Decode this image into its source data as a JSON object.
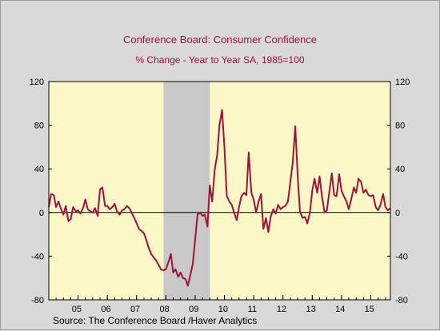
{
  "chart_data": {
    "type": "line",
    "title": "Conference Board: Consumer Confidence",
    "subtitle": "% Change - Year to Year    SA, 1985=100",
    "source": "Source:  The Conference Board /Haver Analytics",
    "x_tick_labels": [
      "05",
      "06",
      "07",
      "08",
      "09",
      "10",
      "11",
      "12",
      "13",
      "14",
      "15"
    ],
    "y_ticks": [
      120,
      80,
      40,
      0,
      -40,
      -80
    ],
    "ylim": [
      -80,
      120
    ],
    "xlim": [
      2004.0,
      2015.67
    ],
    "recession": {
      "start": 2007.92,
      "end": 2009.5
    },
    "colors": {
      "line": "#a0103a",
      "plot_bg": "#fbf7c7",
      "recession": "#c8c8c8",
      "title": "#a0103a"
    },
    "series": [
      {
        "x": [
          2004.0,
          2004.08,
          2004.17,
          2004.25,
          2004.33,
          2004.42,
          2004.5,
          2004.58,
          2004.67,
          2004.75,
          2004.83,
          2004.92,
          2005.0,
          2005.08,
          2005.17,
          2005.25,
          2005.33,
          2005.42,
          2005.5,
          2005.58,
          2005.67,
          2005.75,
          2005.83,
          2005.92,
          2006.0,
          2006.08,
          2006.17,
          2006.25,
          2006.33,
          2006.42,
          2006.5,
          2006.58,
          2006.67,
          2006.75,
          2006.83,
          2006.92,
          2007.0,
          2007.08,
          2007.17,
          2007.25,
          2007.33,
          2007.42,
          2007.5,
          2007.58,
          2007.67,
          2007.75,
          2007.83,
          2007.92,
          2008.0,
          2008.08,
          2008.17,
          2008.25,
          2008.33,
          2008.42,
          2008.5,
          2008.58,
          2008.67,
          2008.75,
          2008.83,
          2008.92,
          2009.0,
          2009.08,
          2009.17,
          2009.25,
          2009.33,
          2009.42,
          2009.5,
          2009.58,
          2009.67,
          2009.75,
          2009.83,
          2009.92,
          2010.0,
          2010.08,
          2010.17,
          2010.25,
          2010.33,
          2010.42,
          2010.5,
          2010.58,
          2010.67,
          2010.75,
          2010.83,
          2010.92,
          2011.0,
          2011.08,
          2011.17,
          2011.25,
          2011.33,
          2011.42,
          2011.5,
          2011.58,
          2011.67,
          2011.75,
          2011.83,
          2011.92,
          2012.0,
          2012.08,
          2012.17,
          2012.25,
          2012.33,
          2012.42,
          2012.5,
          2012.58,
          2012.67,
          2012.75,
          2012.83,
          2012.92,
          2013.0,
          2013.08,
          2013.17,
          2013.25,
          2013.33,
          2013.42,
          2013.5,
          2013.58,
          2013.67,
          2013.75,
          2013.83,
          2013.92,
          2014.0,
          2014.08,
          2014.17,
          2014.25,
          2014.33,
          2014.42,
          2014.5,
          2014.58,
          2014.67,
          2014.75,
          2014.83,
          2014.92,
          2015.0,
          2015.08,
          2015.17,
          2015.25,
          2015.33,
          2015.42,
          2015.5,
          2015.58,
          2015.67
        ],
        "y": [
          5,
          17,
          16,
          5,
          10,
          3,
          -2,
          6,
          -8,
          -6,
          5,
          1,
          2,
          -1,
          4,
          12,
          3,
          1,
          0,
          4,
          -3,
          21,
          23,
          6,
          6,
          3,
          5,
          8,
          1,
          -2,
          2,
          3,
          6,
          4,
          0,
          -5,
          -10,
          -15,
          -17,
          -19,
          -25,
          -33,
          -38,
          -41,
          -44,
          -48,
          -52,
          -53,
          -52,
          -46,
          -38,
          -55,
          -52,
          -59,
          -55,
          -60,
          -61,
          -67,
          -58,
          -47,
          -25,
          -2,
          0,
          -3,
          -2,
          -13,
          25,
          10,
          40,
          52,
          80,
          94,
          60,
          15,
          10,
          7,
          0,
          -7,
          5,
          15,
          18,
          16,
          55,
          18,
          12,
          0,
          10,
          17,
          -15,
          -5,
          -18,
          -4,
          3,
          -1,
          7,
          3,
          5,
          6,
          10,
          28,
          45,
          79,
          35,
          1,
          -5,
          -4,
          -10,
          0,
          20,
          31,
          18,
          33,
          15,
          0,
          2,
          18,
          36,
          16,
          15,
          35,
          20,
          15,
          10,
          3,
          12,
          23,
          18,
          31,
          28,
          18,
          21,
          16,
          15,
          16,
          5,
          2,
          7,
          17,
          5,
          2,
          4
        ]
      }
    ]
  }
}
